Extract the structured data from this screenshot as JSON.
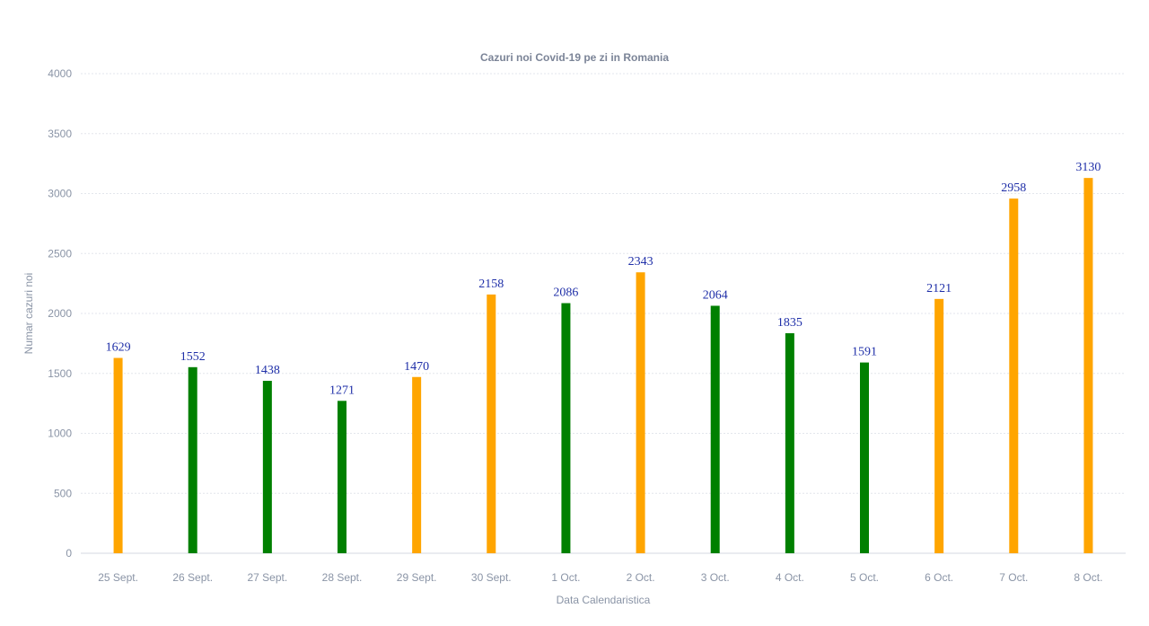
{
  "chart_data": {
    "type": "bar",
    "title": "Cazuri noi Covid-19 pe zi in Romania",
    "xlabel": "Data Calendaristica",
    "ylabel": "Numar cazuri noi",
    "ylim": [
      0,
      4000
    ],
    "yticks": [
      0,
      500,
      1000,
      1500,
      2000,
      2500,
      3000,
      3500,
      4000
    ],
    "grid": true,
    "categories": [
      "25 Sept.",
      "26 Sept.",
      "27 Sept.",
      "28 Sept.",
      "29 Sept.",
      "30 Sept.",
      "1 Oct.",
      "2 Oct.",
      "3 Oct.",
      "4 Oct.",
      "5 Oct.",
      "6 Oct.",
      "7 Oct.",
      "8 Oct."
    ],
    "values": [
      1629,
      1552,
      1438,
      1271,
      1470,
      2158,
      2086,
      2343,
      2064,
      1835,
      1591,
      2121,
      2958,
      3130
    ],
    "bar_colors": [
      "#ffa500",
      "#008000",
      "#008000",
      "#008000",
      "#ffa500",
      "#ffa500",
      "#008000",
      "#ffa500",
      "#008000",
      "#008000",
      "#008000",
      "#ffa500",
      "#ffa500",
      "#ffa500"
    ],
    "colors": {
      "orange": "#ffa500",
      "green": "#008000",
      "data_label": "#1f2fa8",
      "grid": "#e3e6ec",
      "axis_text": "#8a94a6"
    }
  }
}
